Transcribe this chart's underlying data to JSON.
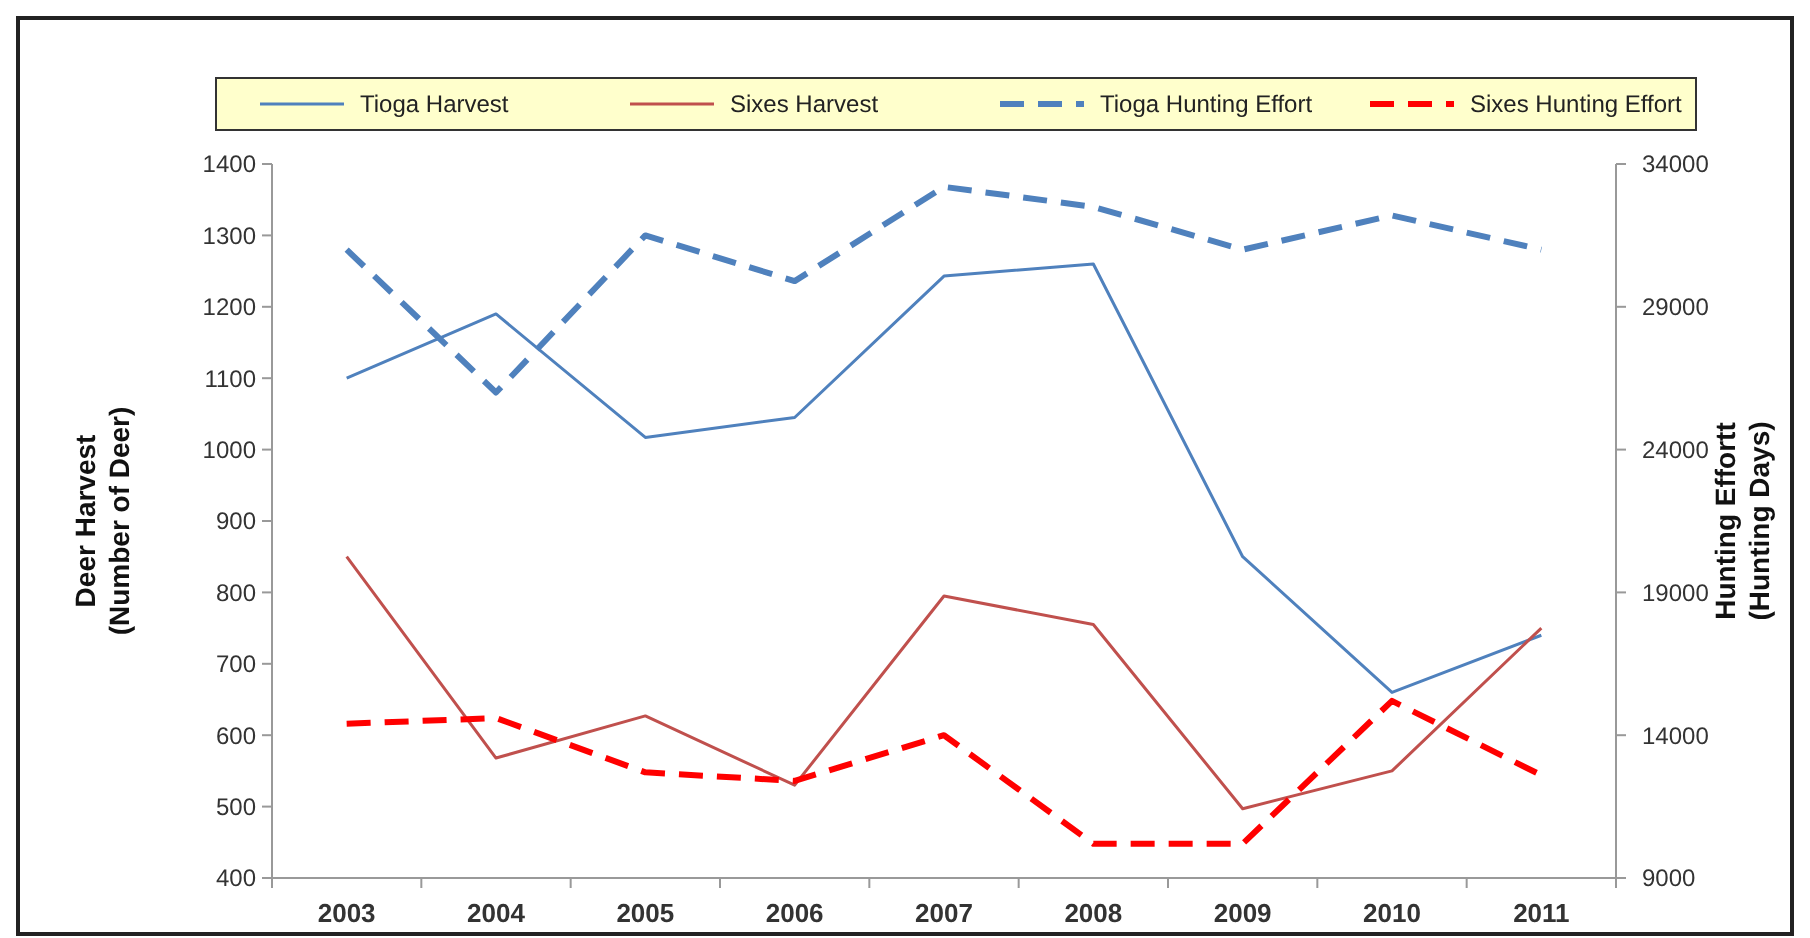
{
  "chart_data": {
    "type": "line",
    "ylabel": "Deer Harvest\n(Number of Deer)",
    "y2label": "Hunting Effortt\n(Hunting Days)",
    "categories": [
      "2003",
      "2004",
      "2005",
      "2006",
      "2007",
      "2008",
      "2009",
      "2010",
      "2011"
    ],
    "series": [
      {
        "name": "Tioga Harvest",
        "color": "#4f81bd",
        "line_style": "solid",
        "values": [
          1100,
          1190,
          1017,
          1045,
          1243,
          1260,
          850,
          660,
          740
        ]
      },
      {
        "name": "Sixes Harvest",
        "color": "#c0504d",
        "line_style": "solid",
        "values": [
          850,
          568,
          627,
          530,
          795,
          755,
          497,
          550,
          750
        ]
      },
      {
        "name": "Tioga Hunting Effort",
        "color": "#4f81bd",
        "line_style": "dashed",
        "axis": "y2",
        "values": [
          31000,
          26000,
          31500,
          29900,
          33200,
          32500,
          31000,
          32200,
          31000
        ]
      },
      {
        "name": "Sixes Hunting Effort",
        "color": "#ff0000",
        "line_style": "dashed",
        "axis": "y2",
        "values": [
          14400,
          14600,
          12700,
          12400,
          14000,
          10200,
          10200,
          15200,
          12600
        ]
      }
    ],
    "ylim": [
      400,
      1400
    ],
    "yticks": [
      400,
      500,
      600,
      700,
      800,
      900,
      1000,
      1100,
      1200,
      1300,
      1400
    ],
    "y2lim": [
      9000,
      34000
    ],
    "y2ticks": [
      9000,
      14000,
      19000,
      24000,
      29000,
      34000
    ],
    "grid": false,
    "legend": "top",
    "marker": "none"
  }
}
